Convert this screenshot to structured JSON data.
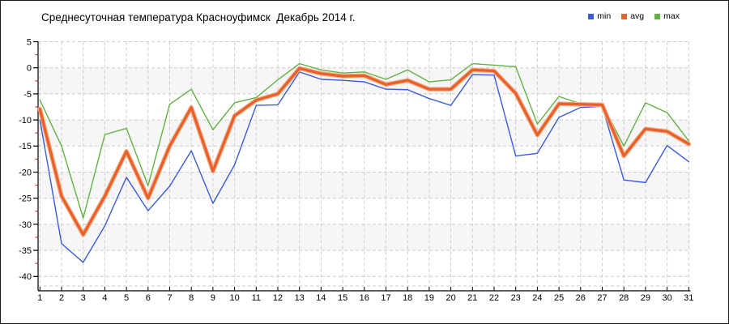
{
  "title": "Среднесуточная температура Красноуфимск  Декабрь 2014 г.",
  "legend": [
    {
      "label": "min",
      "color": "#3b5bdb"
    },
    {
      "label": "avg",
      "color": "#e8612c"
    },
    {
      "label": "max",
      "color": "#62b244"
    }
  ],
  "colors": {
    "grid": "#cccccc",
    "band": "#f6f6f6",
    "axis": "#000000",
    "minor_tick": "#cc3333",
    "min_line": "#3b5bdb",
    "avg_line": "#e8612c",
    "avg_halo": "#f3ad83",
    "max_line": "#62b244"
  },
  "chart_data": {
    "type": "line",
    "title": "Среднесуточная температура Красноуфимск  Декабрь 2014 г.",
    "xlabel": "",
    "ylabel": "",
    "x_range": [
      1,
      31
    ],
    "ylim": [
      -40,
      5
    ],
    "yticks": [
      5,
      0,
      -5,
      -10,
      -15,
      -20,
      -25,
      -30,
      -35,
      -40
    ],
    "grid": "dashed",
    "legend_position": "top-right",
    "x": [
      1,
      2,
      3,
      4,
      5,
      6,
      7,
      8,
      9,
      10,
      11,
      12,
      13,
      14,
      15,
      16,
      17,
      18,
      19,
      20,
      21,
      22,
      23,
      24,
      25,
      26,
      27,
      28,
      29,
      30,
      31
    ],
    "series": [
      {
        "name": "min",
        "values": [
          -10.0,
          -33.7,
          -37.3,
          -30.3,
          -21.0,
          -27.4,
          -22.7,
          -15.9,
          -26.0,
          -18.6,
          -7.2,
          -7.1,
          -0.8,
          -2.2,
          -2.4,
          -2.7,
          -4.1,
          -4.2,
          -5.9,
          -7.2,
          -1.3,
          -1.4,
          -16.9,
          -16.4,
          -9.5,
          -7.6,
          -7.4,
          -21.5,
          -22.0,
          -14.9,
          -18.0
        ]
      },
      {
        "name": "avg",
        "values": [
          -7.9,
          -24.6,
          -32.0,
          -24.6,
          -16.0,
          -25.0,
          -15.0,
          -7.6,
          -19.8,
          -9.2,
          -6.2,
          -5.0,
          -0.1,
          -1.1,
          -1.6,
          -1.5,
          -3.2,
          -2.4,
          -4.1,
          -4.1,
          -0.4,
          -0.6,
          -4.9,
          -12.9,
          -6.9,
          -7.0,
          -7.1,
          -16.9,
          -11.7,
          -12.2,
          -14.6
        ]
      },
      {
        "name": "max",
        "values": [
          -6.2,
          -15.0,
          -28.8,
          -12.8,
          -11.6,
          -22.6,
          -7.0,
          -4.1,
          -11.9,
          -6.7,
          -5.7,
          -2.3,
          0.8,
          -0.4,
          -1.0,
          -0.8,
          -2.2,
          -0.4,
          -2.7,
          -2.3,
          0.8,
          0.5,
          0.2,
          -10.8,
          -5.5,
          -6.9,
          -7.0,
          -15.0,
          -6.7,
          -8.6,
          -14.0
        ]
      }
    ]
  }
}
